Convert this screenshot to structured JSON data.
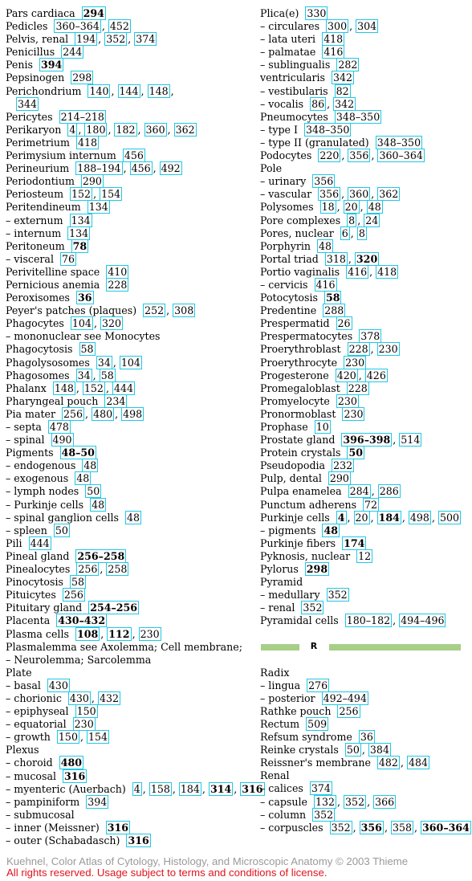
{
  "left_column": [
    {
      "t": "Pars cardiaca",
      "r": [
        {
          "v": "294",
          "b": true
        }
      ]
    },
    {
      "t": "Pedicles",
      "r": [
        {
          "v": "360–364"
        },
        {
          "v": "452"
        }
      ]
    },
    {
      "t": "Pelvis, renal",
      "r": [
        {
          "v": "194"
        },
        {
          "v": "352"
        },
        {
          "v": "374"
        }
      ]
    },
    {
      "t": "Penicillus",
      "r": [
        {
          "v": "244"
        }
      ]
    },
    {
      "t": "Penis",
      "r": [
        {
          "v": "394",
          "b": true
        }
      ]
    },
    {
      "t": "Pepsinogen",
      "r": [
        {
          "v": "298"
        }
      ]
    },
    {
      "t": "Perichondrium",
      "r": [
        {
          "v": "140"
        },
        {
          "v": "144"
        },
        {
          "v": "148"
        }
      ],
      "trail": ","
    },
    {
      "t": "",
      "i": true,
      "r": [
        {
          "v": "344"
        }
      ],
      "cont": true
    },
    {
      "t": "Pericytes",
      "r": [
        {
          "v": "214–218"
        }
      ]
    },
    {
      "t": "Perikaryon",
      "r": [
        {
          "v": "4"
        },
        {
          "v": "180"
        },
        {
          "v": "182"
        },
        {
          "v": "360"
        },
        {
          "v": "362"
        }
      ]
    },
    {
      "t": "Perimetrium",
      "r": [
        {
          "v": "418"
        }
      ]
    },
    {
      "t": "Perimysium internum",
      "r": [
        {
          "v": "456"
        }
      ]
    },
    {
      "t": "Perineurium",
      "r": [
        {
          "v": "188–194"
        },
        {
          "v": "456"
        },
        {
          "v": "492"
        }
      ]
    },
    {
      "t": "Periodontium",
      "r": [
        {
          "v": "290"
        }
      ]
    },
    {
      "t": "Periosteum",
      "r": [
        {
          "v": "152"
        },
        {
          "v": "154"
        }
      ]
    },
    {
      "t": "Peritendineum",
      "r": [
        {
          "v": "134"
        }
      ]
    },
    {
      "t": "– externum",
      "r": [
        {
          "v": "134"
        }
      ]
    },
    {
      "t": "– internum",
      "r": [
        {
          "v": "134"
        }
      ]
    },
    {
      "t": "Peritoneum",
      "r": [
        {
          "v": "78",
          "b": true
        }
      ]
    },
    {
      "t": "– visceral",
      "r": [
        {
          "v": "76"
        }
      ]
    },
    {
      "t": "Perivitelline space",
      "r": [
        {
          "v": "410"
        }
      ]
    },
    {
      "t": "Pernicious anemia",
      "r": [
        {
          "v": "228"
        }
      ]
    },
    {
      "t": "Peroxisomes",
      "r": [
        {
          "v": "36",
          "b": true
        }
      ]
    },
    {
      "t": "Peyer's patches (plaques)",
      "r": [
        {
          "v": "252"
        },
        {
          "v": "308"
        }
      ]
    },
    {
      "t": "Phagocytes",
      "r": [
        {
          "v": "104"
        },
        {
          "v": "320"
        }
      ]
    },
    {
      "t": "– mononuclear see Monocytes",
      "r": []
    },
    {
      "t": "Phagocytosis",
      "r": [
        {
          "v": "58"
        }
      ]
    },
    {
      "t": "Phagolysosomes",
      "r": [
        {
          "v": "34"
        },
        {
          "v": "104"
        }
      ]
    },
    {
      "t": "Phagosomes",
      "r": [
        {
          "v": "34"
        },
        {
          "v": "58"
        }
      ]
    },
    {
      "t": "Phalanx",
      "r": [
        {
          "v": "148"
        },
        {
          "v": "152"
        },
        {
          "v": "444"
        }
      ]
    },
    {
      "t": "Pharyngeal pouch",
      "r": [
        {
          "v": "234"
        }
      ]
    },
    {
      "t": "Pia mater",
      "r": [
        {
          "v": "256"
        },
        {
          "v": "480"
        },
        {
          "v": "498"
        }
      ]
    },
    {
      "t": "– septa",
      "r": [
        {
          "v": "478"
        }
      ]
    },
    {
      "t": "– spinal",
      "r": [
        {
          "v": "490"
        }
      ]
    },
    {
      "t": "Pigments",
      "r": [
        {
          "v": "48–50",
          "b": true
        }
      ]
    },
    {
      "t": "– endogenous",
      "r": [
        {
          "v": "48"
        }
      ]
    },
    {
      "t": "– exogenous",
      "r": [
        {
          "v": "48"
        }
      ]
    },
    {
      "t": "– lymph nodes",
      "r": [
        {
          "v": "50"
        }
      ]
    },
    {
      "t": "– Purkinje cells",
      "r": [
        {
          "v": "48"
        }
      ]
    },
    {
      "t": "– spinal ganglion cells",
      "r": [
        {
          "v": "48"
        }
      ]
    },
    {
      "t": "– spleen",
      "r": [
        {
          "v": "50"
        }
      ]
    },
    {
      "t": "Pili",
      "r": [
        {
          "v": "444"
        }
      ]
    },
    {
      "t": "Pineal gland",
      "r": [
        {
          "v": "256–258",
          "b": true
        }
      ]
    },
    {
      "t": "Pinealocytes",
      "r": [
        {
          "v": "256"
        },
        {
          "v": "258"
        }
      ]
    },
    {
      "t": "Pinocytosis",
      "r": [
        {
          "v": "58"
        }
      ]
    },
    {
      "t": "Pituicytes",
      "r": [
        {
          "v": "256"
        }
      ]
    },
    {
      "t": "Pituitary gland",
      "r": [
        {
          "v": "254–256",
          "b": true
        }
      ]
    },
    {
      "t": "Placenta",
      "r": [
        {
          "v": "430–432",
          "b": true
        }
      ]
    },
    {
      "t": "Plasma cells",
      "r": [
        {
          "v": "108",
          "b": true
        },
        {
          "v": "112",
          "b": true
        },
        {
          "v": "230"
        }
      ]
    },
    {
      "t": "Plasmalemma see Axolemma; Cell membrane;",
      "r": []
    },
    {
      "t": "– Neurolemma; Sarcolemma",
      "r": []
    },
    {
      "t": "Plate",
      "r": []
    },
    {
      "t": "– basal",
      "r": [
        {
          "v": "430"
        }
      ]
    },
    {
      "t": "– chorionic",
      "r": [
        {
          "v": "430"
        },
        {
          "v": "432"
        }
      ]
    },
    {
      "t": "– epiphyseal",
      "r": [
        {
          "v": "150"
        }
      ]
    },
    {
      "t": "– equatorial",
      "r": [
        {
          "v": "230"
        }
      ]
    },
    {
      "t": "– growth",
      "r": [
        {
          "v": "150"
        },
        {
          "v": "154"
        }
      ]
    },
    {
      "t": "Plexus",
      "r": []
    },
    {
      "t": "– choroid",
      "r": [
        {
          "v": "480",
          "b": true
        }
      ]
    },
    {
      "t": "– mucosal",
      "r": [
        {
          "v": "316",
          "b": true
        }
      ]
    },
    {
      "t": "– myenteric (Auerbach)",
      "r": [
        {
          "v": "4"
        },
        {
          "v": "158"
        },
        {
          "v": "184"
        },
        {
          "v": "314",
          "b": true
        },
        {
          "v": "316",
          "b": true
        }
      ]
    },
    {
      "t": "– pampiniform",
      "r": [
        {
          "v": "394"
        }
      ]
    },
    {
      "t": "– submucosal",
      "r": []
    },
    {
      "t": "– inner (Meissner)",
      "r": [
        {
          "v": "316",
          "b": true
        }
      ]
    },
    {
      "t": "– outer (Schabadasch)",
      "r": [
        {
          "v": "316",
          "b": true
        }
      ]
    }
  ],
  "right_column_top": [
    {
      "t": "Plica(e)",
      "r": [
        {
          "v": "330"
        }
      ]
    },
    {
      "t": "– circulares",
      "r": [
        {
          "v": "300"
        },
        {
          "v": "304"
        }
      ]
    },
    {
      "t": "– lata uteri",
      "r": [
        {
          "v": "418"
        }
      ]
    },
    {
      "t": "– palmatae",
      "r": [
        {
          "v": "416"
        }
      ]
    },
    {
      "t": "– sublingualis",
      "r": [
        {
          "v": "282"
        }
      ]
    },
    {
      "t": "ventricularis",
      "r": [
        {
          "v": "342"
        }
      ]
    },
    {
      "t": "– vestibularis",
      "r": [
        {
          "v": "82"
        }
      ]
    },
    {
      "t": "– vocalis",
      "r": [
        {
          "v": "86"
        },
        {
          "v": "342"
        }
      ]
    },
    {
      "t": "Pneumocytes",
      "r": [
        {
          "v": "348–350"
        }
      ]
    },
    {
      "t": "– type I",
      "r": [
        {
          "v": "348–350"
        }
      ]
    },
    {
      "t": "– type II (granulated)",
      "r": [
        {
          "v": "348–350"
        }
      ]
    },
    {
      "t": "Podocytes",
      "r": [
        {
          "v": "220"
        },
        {
          "v": "356"
        },
        {
          "v": "360–364"
        }
      ]
    },
    {
      "t": "Pole",
      "r": []
    },
    {
      "t": "– urinary",
      "r": [
        {
          "v": "356"
        }
      ]
    },
    {
      "t": "– vascular",
      "r": [
        {
          "v": "356"
        },
        {
          "v": "360"
        },
        {
          "v": "362"
        }
      ]
    },
    {
      "t": "Polysomes",
      "r": [
        {
          "v": "18"
        },
        {
          "v": "20"
        },
        {
          "v": "48"
        }
      ]
    },
    {
      "t": "Pore complexes",
      "r": [
        {
          "v": "8"
        },
        {
          "v": "24"
        }
      ]
    },
    {
      "t": "Pores, nuclear",
      "r": [
        {
          "v": "6"
        },
        {
          "v": "8"
        }
      ]
    },
    {
      "t": "Porphyrin",
      "r": [
        {
          "v": "48"
        }
      ]
    },
    {
      "t": "Portal triad",
      "r": [
        {
          "v": "318"
        },
        {
          "v": "320",
          "b": true
        }
      ]
    },
    {
      "t": "Portio vaginalis",
      "r": [
        {
          "v": "416"
        },
        {
          "v": "418"
        }
      ]
    },
    {
      "t": "– cervicis",
      "r": [
        {
          "v": "416"
        }
      ]
    },
    {
      "t": "Potocytosis",
      "r": [
        {
          "v": "58",
          "b": true
        }
      ]
    },
    {
      "t": "Predentine",
      "r": [
        {
          "v": "288"
        }
      ]
    },
    {
      "t": "Prespermatid",
      "r": [
        {
          "v": "26"
        }
      ]
    },
    {
      "t": "Prespermatocytes",
      "r": [
        {
          "v": "378"
        }
      ]
    },
    {
      "t": "Proerythroblast",
      "r": [
        {
          "v": "228"
        },
        {
          "v": "230"
        }
      ]
    },
    {
      "t": "Proerythrocyte",
      "r": [
        {
          "v": "230"
        }
      ]
    },
    {
      "t": "Progesterone",
      "r": [
        {
          "v": "420"
        },
        {
          "v": "426"
        }
      ]
    },
    {
      "t": "Promegaloblast",
      "r": [
        {
          "v": "228"
        }
      ]
    },
    {
      "t": "Promyelocyte",
      "r": [
        {
          "v": "230"
        }
      ]
    },
    {
      "t": "Pronormoblast",
      "r": [
        {
          "v": "230"
        }
      ]
    },
    {
      "t": "Prophase",
      "r": [
        {
          "v": "10"
        }
      ]
    },
    {
      "t": "Prostate gland",
      "r": [
        {
          "v": "396–398",
          "b": true
        },
        {
          "v": "514"
        }
      ]
    },
    {
      "t": "Protein crystals",
      "r": [
        {
          "v": "50",
          "b": true
        }
      ]
    },
    {
      "t": "Pseudopodia",
      "r": [
        {
          "v": "232"
        }
      ]
    },
    {
      "t": "Pulp, dental",
      "r": [
        {
          "v": "290"
        }
      ]
    },
    {
      "t": "Pulpa enamelea",
      "r": [
        {
          "v": "284"
        },
        {
          "v": "286"
        }
      ]
    },
    {
      "t": "Punctum adherens",
      "r": [
        {
          "v": "72"
        }
      ]
    },
    {
      "t": "Purkinje cells",
      "r": [
        {
          "v": "4",
          "b": true
        },
        {
          "v": "20"
        },
        {
          "v": "184",
          "b": true
        },
        {
          "v": "498"
        },
        {
          "v": "500"
        }
      ]
    },
    {
      "t": "– pigments",
      "r": [
        {
          "v": "48",
          "b": true
        }
      ]
    },
    {
      "t": "Purkinje fibers",
      "r": [
        {
          "v": "174",
          "b": true
        }
      ]
    },
    {
      "t": "Pyknosis, nuclear",
      "r": [
        {
          "v": "12"
        }
      ]
    },
    {
      "t": "Pylorus",
      "r": [
        {
          "v": "298",
          "b": true
        }
      ]
    },
    {
      "t": "Pyramid",
      "r": []
    },
    {
      "t": "– medullary",
      "r": [
        {
          "v": "352"
        }
      ]
    },
    {
      "t": "– renal",
      "r": [
        {
          "v": "352"
        }
      ]
    },
    {
      "t": "Pyramidal cells",
      "r": [
        {
          "v": "180–182"
        },
        {
          "v": "494–496"
        }
      ]
    }
  ],
  "section_letter": "R",
  "right_column_bottom": [
    {
      "t": "Radix",
      "r": []
    },
    {
      "t": "– lingua",
      "r": [
        {
          "v": "276"
        }
      ]
    },
    {
      "t": "– posterior",
      "r": [
        {
          "v": "492–494"
        }
      ]
    },
    {
      "t": "Rathke pouch",
      "r": [
        {
          "v": "256"
        }
      ]
    },
    {
      "t": "Rectum",
      "r": [
        {
          "v": "509"
        }
      ]
    },
    {
      "t": "Refsum syndrome",
      "r": [
        {
          "v": "36"
        }
      ]
    },
    {
      "t": "Reinke crystals",
      "r": [
        {
          "v": "50"
        },
        {
          "v": "384"
        }
      ]
    },
    {
      "t": "Reissner's membrane",
      "r": [
        {
          "v": "482"
        },
        {
          "v": "484"
        }
      ]
    },
    {
      "t": "Renal",
      "r": []
    },
    {
      "t": "– calices",
      "r": [
        {
          "v": "374"
        }
      ]
    },
    {
      "t": "– capsule",
      "r": [
        {
          "v": "132"
        },
        {
          "v": "352"
        },
        {
          "v": "366"
        }
      ]
    },
    {
      "t": "– column",
      "r": [
        {
          "v": "352"
        }
      ]
    },
    {
      "t": "– corpuscles",
      "r": [
        {
          "v": "352"
        },
        {
          "v": "356",
          "b": true
        },
        {
          "v": "358"
        },
        {
          "v": "360–364",
          "b": true
        }
      ]
    }
  ],
  "footer": {
    "line1": "Kuehnel, Color Atlas of Cytology, Histology, and Microscopic Anatomy © 2003 Thieme",
    "line2": "All rights reserved. Usage subject to terms and conditions of license."
  },
  "colors": {
    "link_box": "#1ec8e6",
    "section_bar": "#a8cf88",
    "footer_gray": "#9a9a9a",
    "footer_red": "#e0141e"
  }
}
